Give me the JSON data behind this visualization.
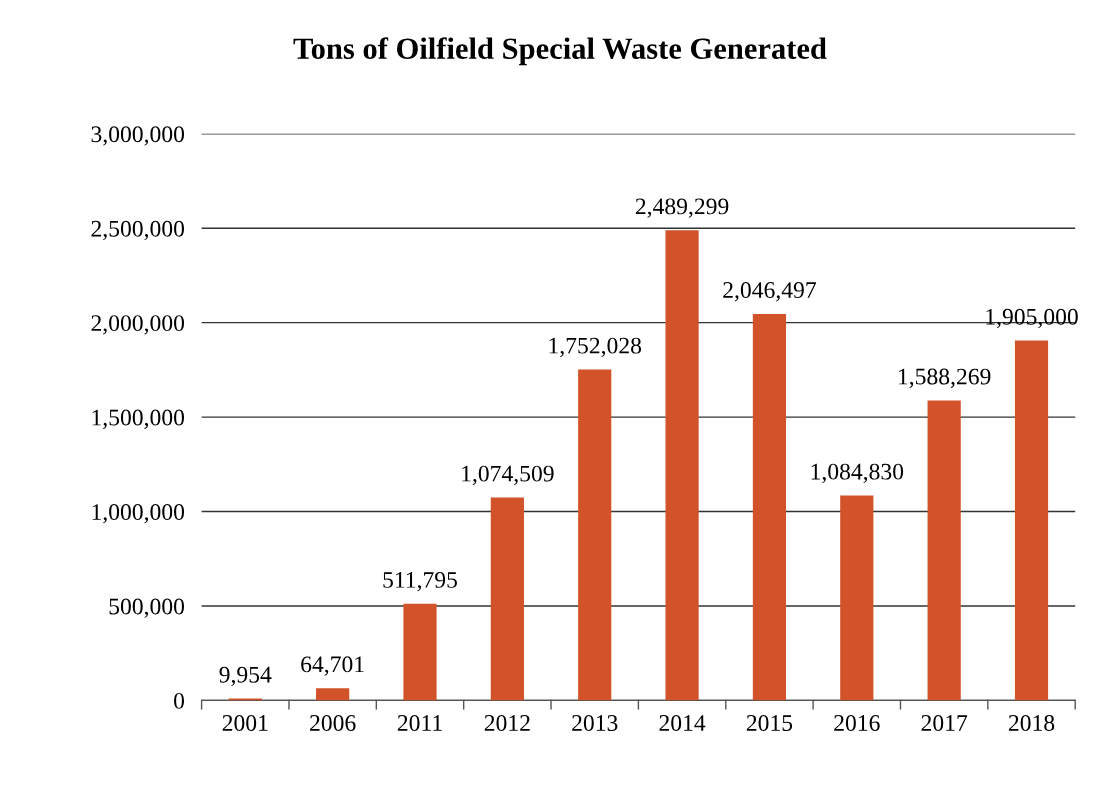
{
  "chart_data": {
    "type": "bar",
    "title": "Tons of Oilfield Special Waste Generated",
    "categories": [
      "2001",
      "2006",
      "2011",
      "2012",
      "2013",
      "2014",
      "2015",
      "2016",
      "2017",
      "2018"
    ],
    "values": [
      9954,
      64701,
      511795,
      1074509,
      1752028,
      2489299,
      2046497,
      1084830,
      1588269,
      1905000
    ],
    "value_labels": [
      "9,954",
      "64,701",
      "511,795",
      "1,074,509",
      "1,752,028",
      "2,489,299",
      "2,046,497",
      "1,084,830",
      "1,588,269",
      "1,905,000"
    ],
    "color": "#d2522a",
    "ylim": [
      0,
      3000000
    ],
    "yticks": [
      {
        "value": 0,
        "label": "0"
      },
      {
        "value": 500000,
        "label": "500,000"
      },
      {
        "value": 1000000,
        "label": "1,000,000"
      },
      {
        "value": 1500000,
        "label": "1,500,000"
      },
      {
        "value": 2000000,
        "label": "2,000,000"
      },
      {
        "value": 2500000,
        "label": "2,500,000"
      },
      {
        "value": 3000000,
        "label": "3,000,000"
      }
    ],
    "grid": "y"
  }
}
